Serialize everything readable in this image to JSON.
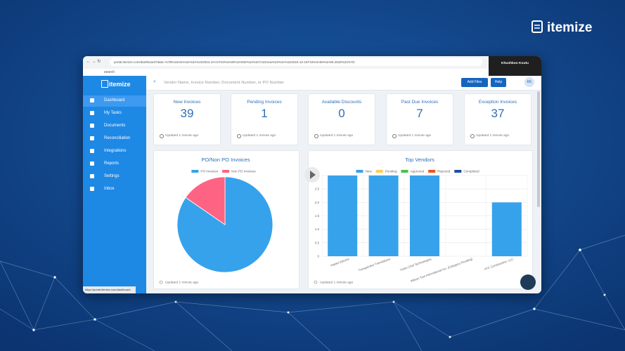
{
  "brand": "itemize",
  "browser": {
    "url": "portal.itemize.com/dashboard?date=%7B%22min%22%3A%222024-10-01T04%3A00%3A00Z%22%2C%22max%22%3A%222024-10-18T15%3A59%3A59.253Z%22%7D",
    "bookmark": "search",
    "user": "Khushboo Koutu",
    "status_url": "https://portal.itemize.com/dashboard"
  },
  "sidebar": {
    "logo": "itemize",
    "items": [
      "Dashboard",
      "My Tasks",
      "Documents",
      "Reconciliation",
      "Integrations",
      "Reports",
      "Settings",
      "Inbox"
    ]
  },
  "header": {
    "search_placeholder": "Vendor Name, Invoice Number, Document Number, or PO Number",
    "add_files": "Add Files",
    "help": "Help",
    "avatar": "KK"
  },
  "cards": [
    {
      "title": "New Invoices",
      "value": 39,
      "updated": "Updated 1 minute ago"
    },
    {
      "title": "Pending Invoices",
      "value": 1,
      "updated": "Updated 1 minute ago"
    },
    {
      "title": "Available Discounts",
      "value": 0,
      "updated": "Updated 1 minute ago"
    },
    {
      "title": "Past Due Invoices",
      "value": 7,
      "updated": "Updated 1 minute ago"
    },
    {
      "title": "Exception Invoices",
      "value": 37,
      "updated": "Updated 1 minute ago"
    }
  ],
  "chart_data": [
    {
      "type": "pie",
      "title": "PO/Non PO Invoices",
      "categories": [
        "PO Invoices",
        "Non PO Invoices"
      ],
      "values": [
        33,
        6
      ],
      "colors": [
        "#36a2eb",
        "#ff6384"
      ],
      "footer": "Updated 1 minute ago"
    },
    {
      "type": "bar",
      "title": "Top Vendors",
      "stacked": true,
      "grid": true,
      "categories": [
        "Impact Electric",
        "Transperfect Translations",
        "Turbo Chef Technologies",
        "Wilson Tool International Inc. (Category Pending)",
        "ATC Construction, LLC"
      ],
      "series": [
        {
          "name": "New",
          "color": "#36a2eb",
          "values": [
            3,
            3,
            3,
            0,
            2
          ]
        },
        {
          "name": "Pending",
          "color": "#ffcd56",
          "values": [
            0,
            0,
            0,
            0,
            0
          ]
        },
        {
          "name": "Approved",
          "color": "#4bc04b",
          "values": [
            0,
            0,
            0,
            0,
            0
          ]
        },
        {
          "name": "Rejected",
          "color": "#f4511e",
          "values": [
            0,
            0,
            0,
            0,
            0
          ]
        },
        {
          "name": "Completed",
          "color": "#1a4fa0",
          "values": [
            0,
            0,
            0,
            0,
            0
          ]
        }
      ],
      "ylim": [
        0,
        3
      ],
      "yticks": [
        0,
        0.5,
        {
          "value": 1,
          "label": "1.0"
        },
        1.5,
        {
          "value": 2,
          "label": "2.0"
        },
        2.5,
        3
      ],
      "footer": "Updated 1 minute ago"
    }
  ]
}
